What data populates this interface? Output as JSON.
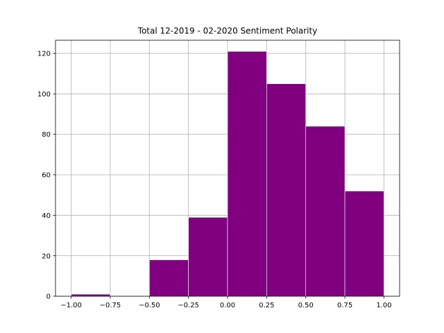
{
  "chart_data": {
    "type": "bar",
    "title": "Total 12-2019 - 02-2020 Sentiment Polarity",
    "xlabel": "",
    "ylabel": "",
    "xlim": [
      -1.1,
      1.1
    ],
    "ylim": [
      0,
      126.5
    ],
    "grid": true,
    "bin_edges": [
      -1.0,
      -0.75,
      -0.5,
      -0.25,
      0.0,
      0.25,
      0.5,
      0.75,
      1.0
    ],
    "values": [
      1,
      0,
      18,
      39,
      121,
      105,
      84,
      52
    ],
    "bar_color": "#800080",
    "edge_color": "#ffffff",
    "grid_color": "#b0b0b0",
    "xticks": [
      -1.0,
      -0.75,
      -0.5,
      -0.25,
      0.0,
      0.25,
      0.5,
      0.75,
      1.0
    ],
    "xtick_labels": [
      "−1.00",
      "−0.75",
      "−0.50",
      "−0.25",
      "0.00",
      "0.25",
      "0.50",
      "0.75",
      "1.00"
    ],
    "yticks": [
      0,
      20,
      40,
      60,
      80,
      100,
      120
    ],
    "ytick_labels": [
      "0",
      "20",
      "40",
      "60",
      "80",
      "100",
      "120"
    ]
  }
}
